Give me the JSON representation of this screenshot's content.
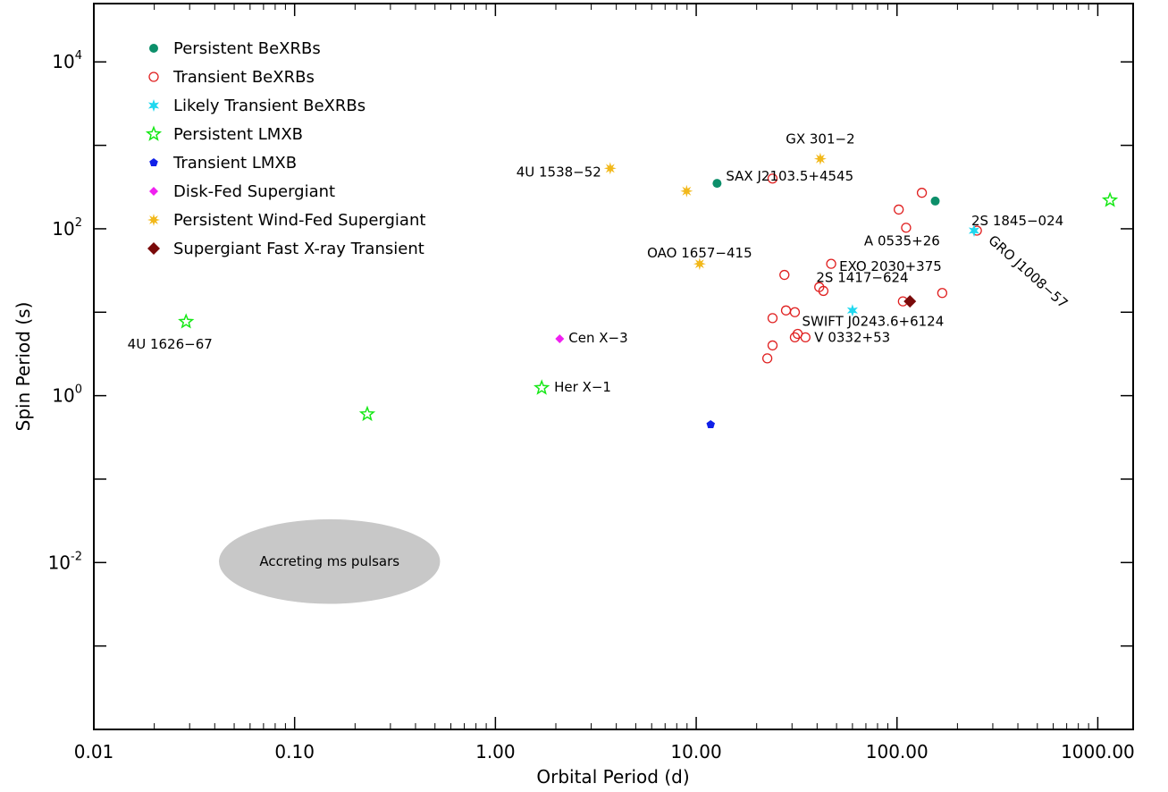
{
  "chart_data": {
    "type": "scatter",
    "xlabel": "Orbital Period (d)",
    "ylabel": "Spin Period (s)",
    "xscale": "log",
    "yscale": "log",
    "xlim": [
      0.01,
      1500
    ],
    "ylim": [
      0.0001,
      50000
    ],
    "x_ticks": [
      {
        "v": 0.01,
        "label": "0.01"
      },
      {
        "v": 0.1,
        "label": "0.10"
      },
      {
        "v": 1,
        "label": "1.00"
      },
      {
        "v": 10,
        "label": "10.00"
      },
      {
        "v": 100,
        "label": "100.00"
      },
      {
        "v": 1000,
        "label": "1000.00"
      }
    ],
    "y_ticks": [
      {
        "v": 10000,
        "base": "10",
        "exp": "4"
      },
      {
        "v": 100,
        "base": "10",
        "exp": "2"
      },
      {
        "v": 1,
        "base": "10",
        "exp": "0"
      },
      {
        "v": 0.01,
        "base": "10",
        "exp": "-2"
      }
    ],
    "y_minor": [
      1000,
      10,
      0.1,
      0.001
    ],
    "legend_position": "top-left",
    "series": [
      {
        "name": "Persistent BeXRBs",
        "marker": "filled-circle",
        "color": "#0c8f6a",
        "points": [
          [
            12.7,
            350
          ],
          [
            155,
            215
          ]
        ]
      },
      {
        "name": "Transient BeXRBs",
        "marker": "open-circle",
        "color": "#e02020",
        "points": [
          [
            24,
            400
          ],
          [
            133,
            270
          ],
          [
            102,
            170
          ],
          [
            111,
            103
          ],
          [
            250,
            95
          ],
          [
            47,
            38
          ],
          [
            27.5,
            28
          ],
          [
            41,
            20
          ],
          [
            43,
            18
          ],
          [
            107,
            13.5
          ],
          [
            168,
            17
          ],
          [
            28,
            10.5
          ],
          [
            31,
            10
          ],
          [
            24,
            8.5
          ],
          [
            32,
            5.5
          ],
          [
            31,
            5
          ],
          [
            35,
            5
          ],
          [
            24,
            4
          ],
          [
            22.6,
            2.8
          ]
        ]
      },
      {
        "name": "Likely Transient BeXRBs",
        "marker": "star6",
        "color": "#20d8ef",
        "points": [
          [
            60,
            10.5
          ],
          [
            242,
            95
          ]
        ]
      },
      {
        "name": "Persistent LMXB",
        "marker": "open-star",
        "color": "#18e818",
        "points": [
          [
            0.0288,
            7.7
          ],
          [
            0.23,
            0.6
          ],
          [
            1.7,
            1.24
          ],
          [
            1150,
            220
          ]
        ]
      },
      {
        "name": "Transient LMXB",
        "marker": "pentagon",
        "color": "#1020e8",
        "points": [
          [
            11.8,
            0.45
          ]
        ]
      },
      {
        "name": "Disk-Fed Supergiant",
        "marker": "diamond",
        "color": "#f020f0",
        "points": [
          [
            2.09,
            4.8
          ]
        ]
      },
      {
        "name": "Persistent Wind-Fed Supergiant",
        "marker": "star8",
        "color": "#f2b81a",
        "points": [
          [
            3.73,
            530
          ],
          [
            41.5,
            690
          ],
          [
            8.96,
            283
          ],
          [
            10.4,
            38
          ]
        ]
      },
      {
        "name": "Supergiant Fast X-ray Transient",
        "marker": "filled-diamond",
        "color": "#7a0a0a",
        "points": [
          [
            116,
            13.5
          ]
        ]
      }
    ],
    "annotations": [
      {
        "text": "4U 1626−67",
        "x": 0.0288,
        "y": 7.7
      },
      {
        "text": "Her X−1",
        "x": 1.7,
        "y": 1.24
      },
      {
        "text": "Cen X−3",
        "x": 2.09,
        "y": 4.8
      },
      {
        "text": "4U 1538−52",
        "x": 3.73,
        "y": 530
      },
      {
        "text": "SAX J2103.5+4545",
        "x": 12.7,
        "y": 350
      },
      {
        "text": "GX 301−2",
        "x": 41.5,
        "y": 690
      },
      {
        "text": "OAO 1657−415",
        "x": 10.4,
        "y": 38
      },
      {
        "text": "2S 1845−024",
        "x": 242,
        "y": 95
      },
      {
        "text": "A 0535+26",
        "x": 111,
        "y": 103
      },
      {
        "text": "GRO J1008−57",
        "x": 250,
        "y": 95
      },
      {
        "text": "EXO 2030+375",
        "x": 47,
        "y": 38
      },
      {
        "text": "2S 1417−624",
        "x": 43,
        "y": 18
      },
      {
        "text": "SWIFT J0243.6+6124",
        "x": 28,
        "y": 10.5
      },
      {
        "text": "V 0332+53",
        "x": 35,
        "y": 5
      }
    ],
    "regions": [
      {
        "label": "Accreting ms pulsars",
        "x_range": [
          0.042,
          0.53
        ],
        "y_range": [
          0.0032,
          0.033
        ],
        "color": "#c8c8c8"
      }
    ]
  }
}
